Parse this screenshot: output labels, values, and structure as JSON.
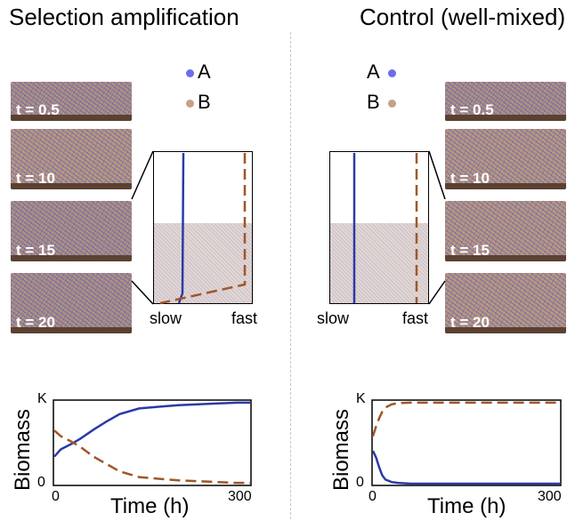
{
  "titles": {
    "left": "Selection amplification",
    "right": "Control (well-mixed)"
  },
  "legend": {
    "a": "A",
    "b": "B"
  },
  "snapshots": [
    "t = 0.5",
    "t = 10",
    "t = 15",
    "t = 20"
  ],
  "speed": {
    "slow": "slow",
    "fast": "fast"
  },
  "colors": {
    "A": "#2b3aa6",
    "B": "#a0562a",
    "dotA": "#6a6ee8",
    "dotB": "#c8a08a",
    "ground": "#5b4132"
  },
  "chart_data": [
    {
      "type": "line",
      "title": "",
      "xlabel": "Time (h)",
      "ylabel": "Biomass",
      "xticks": [
        "0",
        "300"
      ],
      "yticks": [
        "0",
        "K"
      ],
      "xlim": [
        0,
        300
      ],
      "ylim": [
        0,
        1
      ],
      "series": [
        {
          "key": "A",
          "style": "solid",
          "x": [
            0,
            10,
            25,
            40,
            60,
            80,
            100,
            130,
            160,
            190,
            220,
            250,
            280,
            300
          ],
          "y": [
            0.33,
            0.42,
            0.48,
            0.55,
            0.66,
            0.76,
            0.85,
            0.92,
            0.94,
            0.96,
            0.97,
            0.98,
            0.99,
            0.99
          ]
        },
        {
          "key": "B",
          "style": "dashed",
          "x": [
            0,
            10,
            25,
            40,
            60,
            80,
            100,
            130,
            160,
            190,
            220,
            250,
            280,
            300
          ],
          "y": [
            0.65,
            0.58,
            0.52,
            0.45,
            0.33,
            0.24,
            0.15,
            0.08,
            0.06,
            0.04,
            0.03,
            0.02,
            0.01,
            0.01
          ]
        }
      ]
    },
    {
      "type": "line",
      "title": "",
      "xlabel": "Time (h)",
      "ylabel": "Biomass",
      "xticks": [
        "0",
        "300"
      ],
      "yticks": [
        "0",
        "K"
      ],
      "xlim": [
        0,
        300
      ],
      "ylim": [
        0,
        1
      ],
      "series": [
        {
          "key": "A",
          "style": "solid",
          "x": [
            0,
            5,
            10,
            15,
            20,
            30,
            40,
            60,
            100,
            150,
            200,
            250,
            300
          ],
          "y": [
            0.4,
            0.32,
            0.2,
            0.1,
            0.05,
            0.02,
            0.01,
            0.0,
            0.0,
            0.0,
            0.0,
            0.0,
            0.0
          ]
        },
        {
          "key": "B",
          "style": "dashed",
          "x": [
            0,
            5,
            10,
            15,
            20,
            30,
            40,
            60,
            100,
            150,
            200,
            250,
            300
          ],
          "y": [
            0.58,
            0.7,
            0.8,
            0.88,
            0.93,
            0.97,
            0.985,
            0.99,
            0.99,
            0.99,
            0.99,
            0.99,
            0.99
          ]
        }
      ]
    }
  ]
}
